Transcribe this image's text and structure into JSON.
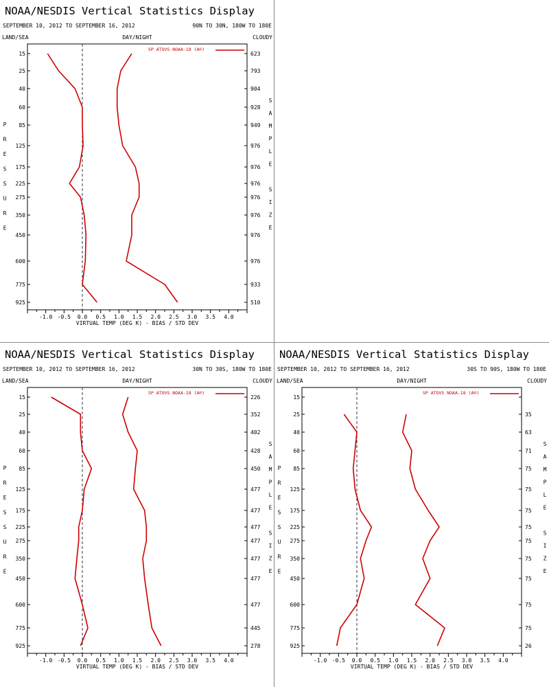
{
  "page": {
    "main_title": "NOAA/NESDIS Vertical Statistics Display",
    "left_label": "LAND/SEA",
    "mid_label": "DAY/NIGHT",
    "right_label": "CLOUDY",
    "pressure_vertical": "PRESSURE",
    "sample_vertical": "SAMPLE SIZE",
    "xaxis_label": "VIRTUAL TEMP (DEG K) - BIAS / STD DEV",
    "legend_label": "SP ATOVS NOAA-18 (A®)",
    "line_color": "#cc0000"
  },
  "chart_data": [
    {
      "type": "line",
      "date_range": "SEPTEMBER 10, 2012 TO SEPTEMBER 16, 2012",
      "region": "90N TO 30N, 180W TO 180E",
      "pressure_levels": [
        "15",
        "25",
        "40",
        "60",
        "85",
        "125",
        "175",
        "225",
        "275",
        "350",
        "450",
        "600",
        "775",
        "925"
      ],
      "xticks": [
        "-1.0",
        "-0.5",
        "0.0",
        "0.5",
        "1.0",
        "1.5",
        "2.0",
        "2.5",
        "3.0",
        "3.5",
        "4.0"
      ],
      "xlim": [
        -1.5,
        4.5
      ],
      "series": [
        {
          "values": [
            -0.95,
            -0.65,
            -0.2,
            0.0,
            0.0,
            0.02,
            -0.08,
            -0.35,
            -0.05,
            0.05,
            0.1,
            0.08,
            0.0,
            0.4
          ]
        },
        {
          "values": [
            1.35,
            1.05,
            0.95,
            0.95,
            1.0,
            1.1,
            1.45,
            1.55,
            1.55,
            1.35,
            1.35,
            1.2,
            2.25,
            2.6
          ]
        }
      ],
      "sample_size": [
        "623",
        "793",
        "904",
        "928",
        "949",
        "976",
        "976",
        "976",
        "976",
        "976",
        "976",
        "976",
        "933",
        "510"
      ]
    },
    {
      "type": "line",
      "date_range": "SEPTEMBER 10, 2012 TO SEPTEMBER 16, 2012",
      "region": "30N TO 30S, 180W TO 180E",
      "pressure_levels": [
        "15",
        "25",
        "40",
        "60",
        "85",
        "125",
        "175",
        "225",
        "275",
        "350",
        "450",
        "600",
        "775",
        "925"
      ],
      "xticks": [
        "-1.0",
        "-0.5",
        "0.0",
        "0.5",
        "1.0",
        "1.5",
        "2.0",
        "2.5",
        "3.0",
        "3.5",
        "4.0"
      ],
      "xlim": [
        -1.5,
        4.5
      ],
      "series": [
        {
          "values": [
            -0.85,
            -0.05,
            -0.05,
            0.0,
            0.25,
            0.05,
            0.0,
            -0.1,
            -0.1,
            -0.15,
            -0.2,
            0.0,
            0.15,
            -0.05
          ]
        },
        {
          "values": [
            1.25,
            1.1,
            1.25,
            1.5,
            1.45,
            1.4,
            1.7,
            1.75,
            1.75,
            1.65,
            1.7,
            1.8,
            1.9,
            2.15
          ]
        }
      ],
      "sample_size": [
        "226",
        "352",
        "402",
        "428",
        "450",
        "477",
        "477",
        "477",
        "477",
        "477",
        "477",
        "477",
        "445",
        "278"
      ]
    },
    {
      "type": "line",
      "date_range": "SEPTEMBER 10, 2012 TO SEPTEMBER 16, 2012",
      "region": "30S TO 90S, 180W TO 180E",
      "pressure_levels": [
        "15",
        "25",
        "40",
        "60",
        "85",
        "125",
        "175",
        "225",
        "275",
        "350",
        "450",
        "600",
        "775",
        "925"
      ],
      "xticks": [
        "-1.0",
        "-0.5",
        "0.0",
        "0.5",
        "1.0",
        "1.5",
        "2.0",
        "2.5",
        "3.0",
        "3.5",
        "4.0"
      ],
      "xlim": [
        -1.5,
        4.5
      ],
      "series": [
        {
          "values": [
            null,
            -0.35,
            0.0,
            -0.05,
            -0.1,
            -0.05,
            0.1,
            0.4,
            0.25,
            0.1,
            0.2,
            0.0,
            -0.45,
            -0.55
          ]
        },
        {
          "values": [
            null,
            1.35,
            1.25,
            1.5,
            1.45,
            1.6,
            1.95,
            2.25,
            2.0,
            1.8,
            2.0,
            1.6,
            2.4,
            2.2
          ]
        }
      ],
      "sample_size": [
        "",
        "35",
        "63",
        "71",
        "75",
        "75",
        "75",
        "75",
        "75",
        "75",
        "75",
        "75",
        "75",
        "26"
      ]
    }
  ]
}
